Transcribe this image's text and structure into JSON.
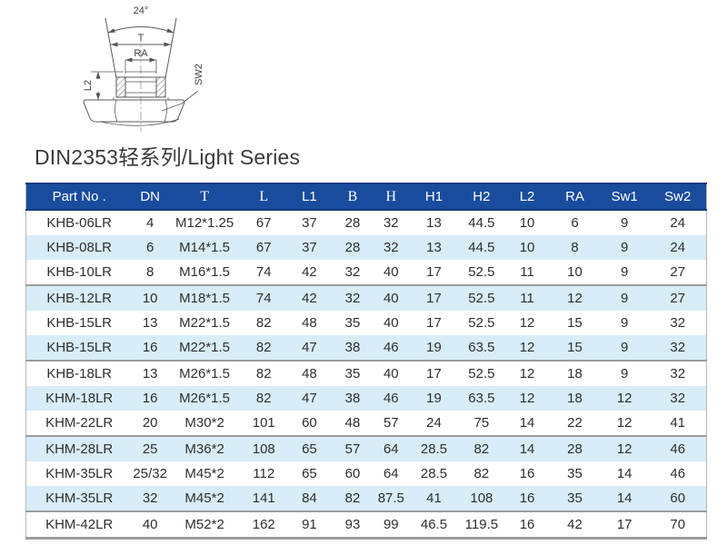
{
  "title": "DIN2353轻系列/Light Series",
  "diagram": {
    "angle_label": "24°",
    "t_label": "T",
    "ra_label": "RA",
    "l2_label": "L2",
    "sw2_label": "SW2"
  },
  "table": {
    "colors": {
      "header_bg": "#1a4c9e",
      "header_text": "#ffffff",
      "row_alt_bg": "#d8edf8",
      "separator": "#9c9c9c"
    },
    "columns": [
      {
        "key": "part_no",
        "label": "Part No .",
        "serif": false
      },
      {
        "key": "dn",
        "label": "DN",
        "serif": false
      },
      {
        "key": "t",
        "label": "T",
        "serif": true
      },
      {
        "key": "l",
        "label": "L",
        "serif": true
      },
      {
        "key": "l1",
        "label": "L1",
        "serif": false
      },
      {
        "key": "b",
        "label": "B",
        "serif": true
      },
      {
        "key": "h",
        "label": "H",
        "serif": true
      },
      {
        "key": "h1",
        "label": "H1",
        "serif": false
      },
      {
        "key": "h2",
        "label": "H2",
        "serif": false
      },
      {
        "key": "l2",
        "label": "L2",
        "serif": false
      },
      {
        "key": "ra",
        "label": "RA",
        "serif": false
      },
      {
        "key": "sw1",
        "label": "Sw1",
        "serif": false
      },
      {
        "key": "sw2",
        "label": "Sw2",
        "serif": false
      }
    ],
    "rows": [
      [
        "KHB-06LR",
        "4",
        "M12*1.25",
        "67",
        "37",
        "28",
        "32",
        "13",
        "44.5",
        "10",
        "6",
        "9",
        "24"
      ],
      [
        "KHB-08LR",
        "6",
        "M14*1.5",
        "67",
        "37",
        "28",
        "32",
        "13",
        "44.5",
        "10",
        "8",
        "9",
        "24"
      ],
      [
        "KHB-10LR",
        "8",
        "M16*1.5",
        "74",
        "42",
        "32",
        "40",
        "17",
        "52.5",
        "11",
        "10",
        "9",
        "27"
      ],
      [
        "KHB-12LR",
        "10",
        "M18*1.5",
        "74",
        "42",
        "32",
        "40",
        "17",
        "52.5",
        "11",
        "12",
        "9",
        "27"
      ],
      [
        "KHB-15LR",
        "13",
        "M22*1.5",
        "82",
        "48",
        "35",
        "40",
        "17",
        "52.5",
        "12",
        "15",
        "9",
        "32"
      ],
      [
        "KHB-15LR",
        "16",
        "M22*1.5",
        "82",
        "47",
        "38",
        "46",
        "19",
        "63.5",
        "12",
        "15",
        "9",
        "32"
      ],
      [
        "KHB-18LR",
        "13",
        "M26*1.5",
        "82",
        "48",
        "35",
        "40",
        "17",
        "52.5",
        "12",
        "18",
        "9",
        "32"
      ],
      [
        "KHM-18LR",
        "16",
        "M26*1.5",
        "82",
        "47",
        "38",
        "46",
        "19",
        "63.5",
        "12",
        "18",
        "12",
        "32"
      ],
      [
        "KHM-22LR",
        "20",
        "M30*2",
        "101",
        "60",
        "48",
        "57",
        "24",
        "75",
        "14",
        "22",
        "12",
        "41"
      ],
      [
        "KHM-28LR",
        "25",
        "M36*2",
        "108",
        "65",
        "57",
        "64",
        "28.5",
        "82",
        "14",
        "28",
        "12",
        "46"
      ],
      [
        "KHM-35LR",
        "25/32",
        "M45*2",
        "112",
        "65",
        "60",
        "64",
        "28.5",
        "82",
        "16",
        "35",
        "14",
        "46"
      ],
      [
        "KHM-35LR",
        "32",
        "M45*2",
        "141",
        "84",
        "82",
        "87.5",
        "41",
        "108",
        "16",
        "35",
        "14",
        "60"
      ],
      [
        "KHM-42LR",
        "40",
        "M52*2",
        "162",
        "91",
        "93",
        "99",
        "46.5",
        "119.5",
        "16",
        "42",
        "17",
        "70"
      ]
    ],
    "group_separator_after": [
      3,
      6,
      9,
      12
    ]
  }
}
